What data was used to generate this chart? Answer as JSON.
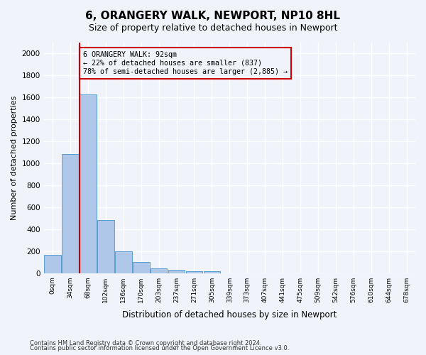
{
  "title": "6, ORANGERY WALK, NEWPORT, NP10 8HL",
  "subtitle": "Size of property relative to detached houses in Newport",
  "xlabel": "Distribution of detached houses by size in Newport",
  "ylabel": "Number of detached properties",
  "bar_values": [
    165,
    1085,
    1625,
    480,
    200,
    100,
    45,
    30,
    20,
    20,
    0,
    0,
    0,
    0,
    0,
    0,
    0,
    0,
    0,
    0,
    0
  ],
  "bar_labels": [
    "0sqm",
    "34sqm",
    "68sqm",
    "102sqm",
    "136sqm",
    "170sqm",
    "203sqm",
    "237sqm",
    "271sqm",
    "305sqm",
    "339sqm",
    "373sqm",
    "407sqm",
    "441sqm",
    "475sqm",
    "509sqm",
    "542sqm",
    "576sqm",
    "610sqm",
    "644sqm",
    "678sqm"
  ],
  "bar_color": "#aec6e8",
  "bar_edge_color": "#5a9fd4",
  "vline_x_index": 2,
  "vline_color": "#cc0000",
  "annotation_text": "6 ORANGERY WALK: 92sqm\n← 22% of detached houses are smaller (837)\n78% of semi-detached houses are larger (2,885) →",
  "annotation_box_color": "#cc0000",
  "ylim": [
    0,
    2100
  ],
  "yticks": [
    0,
    200,
    400,
    600,
    800,
    1000,
    1200,
    1400,
    1600,
    1800,
    2000
  ],
  "footer_line1": "Contains HM Land Registry data © Crown copyright and database right 2024.",
  "footer_line2": "Contains public sector information licensed under the Open Government Licence v3.0.",
  "background_color": "#f0f4fa",
  "grid_color": "#ffffff"
}
